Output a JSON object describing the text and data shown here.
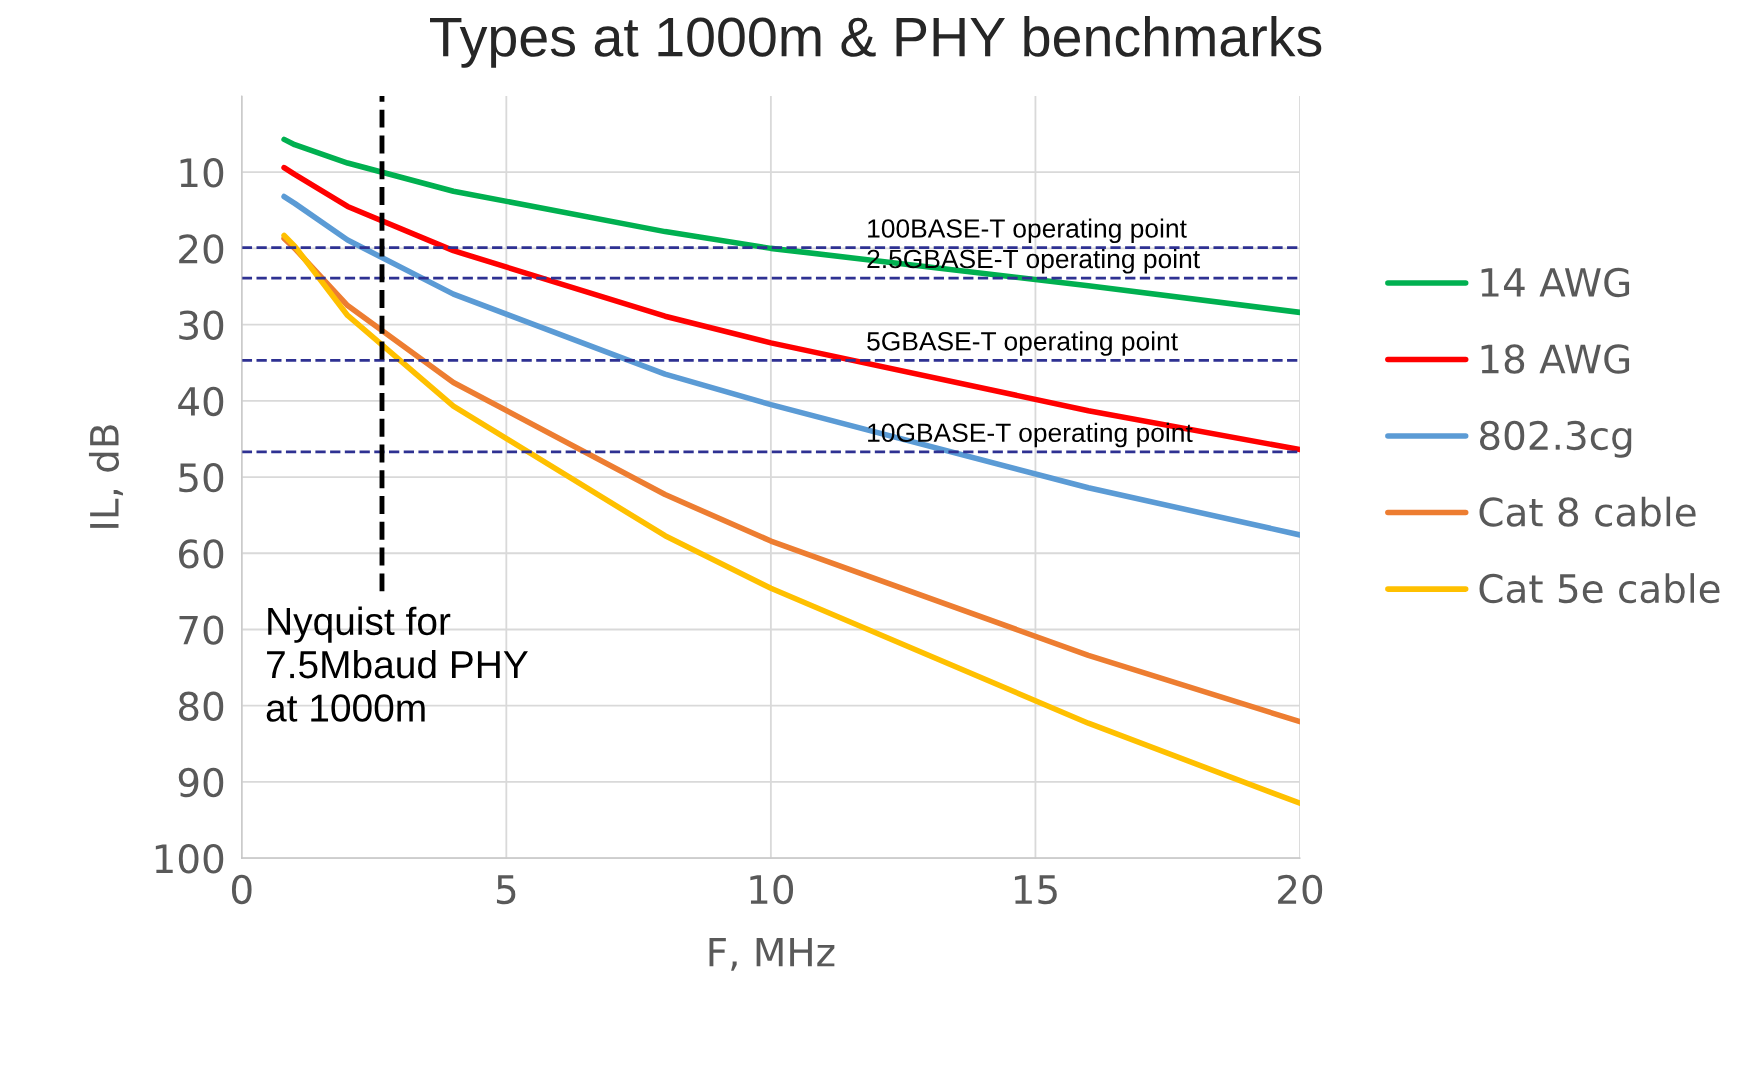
{
  "chart_data": {
    "type": "line",
    "title": "Types at 1000m & PHY benchmarks",
    "xlabel": "F, MHz",
    "ylabel": "IL, dB",
    "x": [
      0.8,
      1,
      2,
      4,
      8,
      10,
      16,
      20
    ],
    "series": [
      {
        "name": "14 AWG",
        "color": "#00b050",
        "values": [
          5.7,
          6.4,
          8.8,
          12.5,
          17.8,
          20.0,
          24.9,
          28.4
        ]
      },
      {
        "name": "18 AWG",
        "color": "#ff0000",
        "values": [
          9.4,
          10.3,
          14.5,
          20.3,
          28.9,
          32.4,
          41.3,
          46.4
        ]
      },
      {
        "name": "802.3cg",
        "color": "#5b9bd5",
        "values": [
          13.2,
          14.1,
          18.9,
          26.0,
          36.5,
          40.5,
          51.4,
          57.6
        ]
      },
      {
        "name": "Cat 8 cable",
        "color": "#ed7d31",
        "values": [
          18.7,
          20.0,
          27.5,
          37.6,
          52.3,
          58.4,
          73.4,
          82.1
        ]
      },
      {
        "name": "Cat 5e cable",
        "color": "#ffc000",
        "values": [
          18.3,
          19.7,
          28.8,
          40.7,
          57.7,
          64.6,
          82.3,
          92.8
        ]
      }
    ],
    "xlim": [
      0,
      20
    ],
    "xticks": [
      0,
      5,
      10,
      15,
      20
    ],
    "ylim": [
      100,
      0
    ],
    "yticks": [
      10,
      20,
      30,
      40,
      50,
      60,
      70,
      80,
      90,
      100
    ],
    "ref_lines": [
      {
        "axis": "y",
        "value": 19.9,
        "label": "100BASE-T operating point",
        "color": "#2e3192",
        "line_style": "dashed"
      },
      {
        "axis": "y",
        "value": 23.9,
        "label": "2.5GBASE-T operating point",
        "color": "#2e3192",
        "line_style": "dashed"
      },
      {
        "axis": "y",
        "value": 34.7,
        "label": "5GBASE-T operating point",
        "color": "#2e3192",
        "line_style": "dashed"
      },
      {
        "axis": "y",
        "value": 46.7,
        "label": "10GBASE-T operating point",
        "color": "#2e3192",
        "line_style": "dashed"
      },
      {
        "axis": "x",
        "value": 2.65,
        "label": "Nyquist for\n7.5Mbaud PHY\nat 1000m",
        "color": "#000000",
        "line_style": "dashed"
      }
    ],
    "grid": true,
    "legend": "right",
    "marker": "none",
    "line_style": "solid"
  }
}
